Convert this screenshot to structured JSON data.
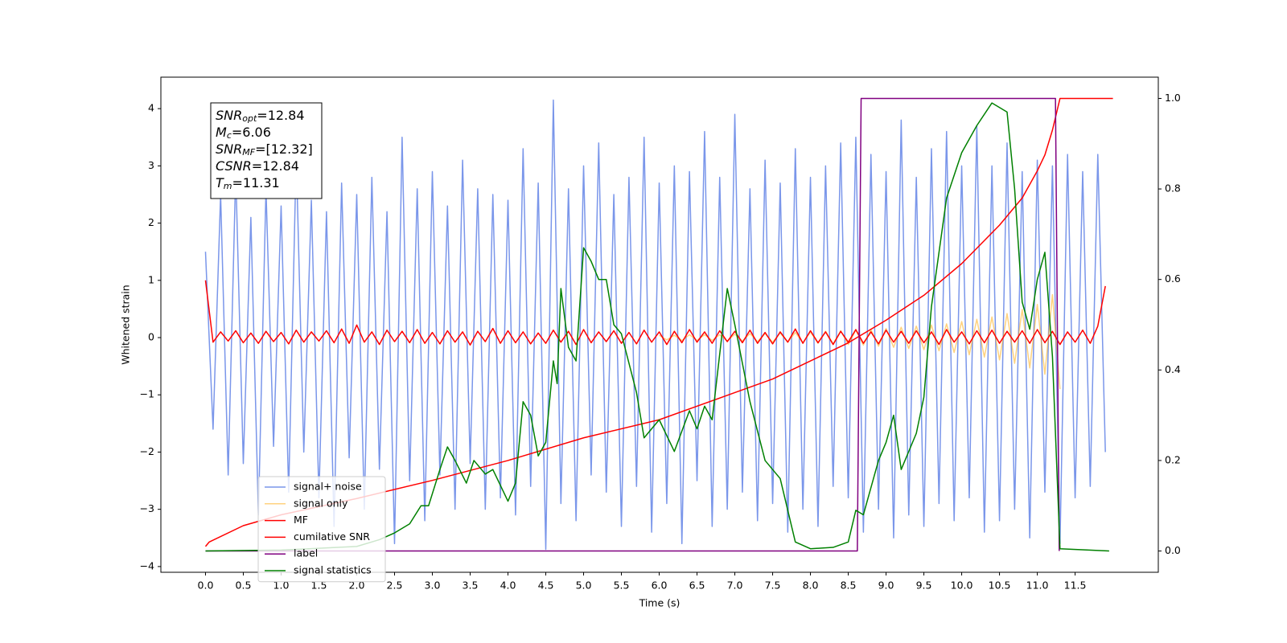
{
  "chart_data": {
    "type": "line",
    "xlabel": "Time (s)",
    "ylabel": "Whitened strain",
    "xlim": [
      -0.59,
      12.6
    ],
    "ylim": [
      -4.1,
      4.55
    ],
    "y2lim": [
      -0.047,
      1.047
    ],
    "xticks": [
      {
        "value": 0,
        "label": "0.0"
      },
      {
        "value": 0.5,
        "label": "0.5"
      },
      {
        "value": 1,
        "label": "1.0"
      },
      {
        "value": 1.5,
        "label": "1.5"
      },
      {
        "value": 2,
        "label": "2.0"
      },
      {
        "value": 2.5,
        "label": "2.5"
      },
      {
        "value": 3,
        "label": "3.0"
      },
      {
        "value": 3.5,
        "label": "3.5"
      },
      {
        "value": 4,
        "label": "4.0"
      },
      {
        "value": 4.5,
        "label": "4.5"
      },
      {
        "value": 5,
        "label": "5.0"
      },
      {
        "value": 5.5,
        "label": "5.5"
      },
      {
        "value": 6,
        "label": "6.0"
      },
      {
        "value": 6.5,
        "label": "6.5"
      },
      {
        "value": 7,
        "label": "7.0"
      },
      {
        "value": 7.5,
        "label": "7.5"
      },
      {
        "value": 8,
        "label": "8.0"
      },
      {
        "value": 8.5,
        "label": "8.5"
      },
      {
        "value": 9,
        "label": "9.0"
      },
      {
        "value": 9.5,
        "label": "9.5"
      },
      {
        "value": 10,
        "label": "10.0"
      },
      {
        "value": 10.5,
        "label": "10.5"
      },
      {
        "value": 11,
        "label": "11.0"
      },
      {
        "value": 11.5,
        "label": "11.5"
      }
    ],
    "yticks": [
      {
        "value": -4,
        "label": "−4"
      },
      {
        "value": -3,
        "label": "−3"
      },
      {
        "value": -2,
        "label": "−2"
      },
      {
        "value": -1,
        "label": "−1"
      },
      0,
      1,
      2,
      3,
      4
    ],
    "y2ticks": [
      {
        "value": 0,
        "label": "0.0"
      },
      {
        "value": 0.2,
        "label": "0.2"
      },
      {
        "value": 0.4,
        "label": "0.4"
      },
      {
        "value": 0.6,
        "label": "0.6"
      },
      {
        "value": 0.8,
        "label": "0.8"
      },
      {
        "value": 1,
        "label": "1.0"
      }
    ],
    "annotations": [
      {
        "symbol": "SNR",
        "sub": "opt",
        "text": "=12.84"
      },
      {
        "symbol": "M",
        "sub": "c",
        "text": "=6.06"
      },
      {
        "symbol": "SNR",
        "sub": "MF",
        "text": "=[12.32]"
      },
      {
        "symbol": "CSNR",
        "text": "=12.84"
      },
      {
        "symbol": "T",
        "sub": "m",
        "text": "=11.31"
      }
    ],
    "x": [
      0,
      0.1,
      0.2,
      0.3,
      0.4,
      0.5,
      0.6,
      0.7,
      0.8,
      0.9,
      1,
      1.1,
      1.2,
      1.3,
      1.4,
      1.5,
      1.6,
      1.7,
      1.8,
      1.9,
      2,
      2.1,
      2.2,
      2.3,
      2.4,
      2.5,
      2.6,
      2.7,
      2.8,
      2.9,
      3,
      3.1,
      3.2,
      3.3,
      3.4,
      3.5,
      3.6,
      3.7,
      3.8,
      3.9,
      4,
      4.1,
      4.2,
      4.3,
      4.4,
      4.5,
      4.6,
      4.7,
      4.8,
      4.9,
      5,
      5.1,
      5.2,
      5.3,
      5.4,
      5.5,
      5.6,
      5.7,
      5.8,
      5.9,
      6,
      6.1,
      6.2,
      6.3,
      6.4,
      6.5,
      6.6,
      6.7,
      6.8,
      6.9,
      7,
      7.1,
      7.2,
      7.3,
      7.4,
      7.5,
      7.6,
      7.7,
      7.8,
      7.9,
      8,
      8.1,
      8.2,
      8.3,
      8.4,
      8.5,
      8.6,
      8.7,
      8.8,
      8.9,
      9,
      9.1,
      9.2,
      9.3,
      9.4,
      9.5,
      9.6,
      9.7,
      9.8,
      9.9,
      10,
      10.1,
      10.2,
      10.3,
      10.4,
      10.5,
      10.6,
      10.7,
      10.8,
      10.9,
      11,
      11.1,
      11.2,
      11.3,
      11.4,
      11.5,
      11.6,
      11.7,
      11.8,
      11.9
    ],
    "series": [
      {
        "name": "signal+ noise",
        "color": "#4169e1",
        "alpha": 0.7,
        "values": [
          1.5,
          -1.6,
          2.5,
          -2.4,
          2.9,
          -2.2,
          2.1,
          -3.1,
          2.6,
          -1.9,
          2.3,
          -2.7,
          3.2,
          -2.0,
          2.4,
          -2.8,
          2.2,
          -3.3,
          2.7,
          -2.1,
          2.5,
          -3.0,
          2.8,
          -2.3,
          2.2,
          -3.6,
          3.5,
          -2.5,
          2.6,
          -3.2,
          2.9,
          -2.4,
          2.3,
          -3.0,
          3.1,
          -2.2,
          2.6,
          -3.0,
          2.5,
          -2.8,
          2.4,
          -3.1,
          3.3,
          -2.6,
          2.7,
          -3.7,
          4.15,
          -2.9,
          2.6,
          -3.2,
          3.0,
          -2.4,
          3.4,
          -2.7,
          2.5,
          -3.3,
          2.8,
          -2.6,
          3.5,
          -3.4,
          2.7,
          -2.9,
          3.0,
          -3.6,
          2.9,
          -2.5,
          3.6,
          -3.3,
          2.8,
          -3.0,
          3.9,
          -2.7,
          2.6,
          -3.2,
          3.1,
          -2.9,
          2.7,
          -3.4,
          3.3,
          -3.0,
          2.8,
          -3.3,
          3.0,
          -2.6,
          3.4,
          -2.8,
          3.5,
          -3.4,
          3.2,
          -3.0,
          2.9,
          -3.5,
          3.8,
          -3.1,
          2.8,
          -3.3,
          3.3,
          -2.9,
          3.6,
          -3.2,
          3.0,
          -2.8,
          3.7,
          -3.4,
          3.0,
          -3.2,
          3.4,
          -3.0,
          2.9,
          -3.5,
          3.1,
          -2.7,
          3.0,
          -3.6,
          3.2,
          -2.8,
          2.9,
          -2.6,
          3.2,
          -2.0
        ]
      },
      {
        "name": "signal only",
        "color": "#ffa500",
        "alpha": 0.5,
        "x": [
          6,
          6.1,
          6.2,
          6.3,
          6.4,
          6.5,
          6.6,
          6.7,
          6.8,
          6.9,
          7,
          7.1,
          7.2,
          7.3,
          7.4,
          7.5,
          7.6,
          7.7,
          7.8,
          7.9,
          8,
          8.1,
          8.2,
          8.3,
          8.4,
          8.5,
          8.6,
          8.7,
          8.8,
          8.9,
          9,
          9.1,
          9.2,
          9.3,
          9.4,
          9.5,
          9.6,
          9.7,
          9.8,
          9.9,
          10,
          10.1,
          10.2,
          10.3,
          10.4,
          10.5,
          10.6,
          10.7,
          10.8,
          10.9,
          11,
          11.1,
          11.2,
          11.3
        ],
        "values": [
          0.04,
          -0.04,
          0.04,
          -0.05,
          0.05,
          -0.05,
          0.05,
          -0.05,
          0.05,
          -0.06,
          0.06,
          -0.06,
          0.07,
          -0.07,
          0.07,
          -0.08,
          0.08,
          -0.08,
          0.09,
          -0.09,
          0.1,
          -0.1,
          0.11,
          -0.11,
          0.12,
          -0.12,
          0.13,
          -0.13,
          0.14,
          -0.15,
          0.16,
          -0.17,
          0.18,
          -0.19,
          0.2,
          -0.21,
          0.22,
          -0.23,
          0.24,
          -0.26,
          0.28,
          -0.3,
          0.32,
          -0.34,
          0.36,
          -0.39,
          0.42,
          -0.45,
          0.49,
          -0.53,
          0.58,
          -0.64,
          0.75,
          -0.9
        ]
      },
      {
        "name": "MF",
        "color": "#ff0000",
        "alpha": 1,
        "values": [
          1.0,
          -0.08,
          0.1,
          -0.06,
          0.12,
          -0.09,
          0.08,
          -0.1,
          0.11,
          -0.07,
          0.09,
          -0.11,
          0.13,
          -0.08,
          0.1,
          -0.06,
          0.12,
          -0.09,
          0.15,
          -0.1,
          0.22,
          -0.08,
          0.1,
          -0.12,
          0.13,
          -0.07,
          0.11,
          -0.09,
          0.14,
          -0.1,
          0.09,
          -0.11,
          0.12,
          -0.08,
          0.1,
          -0.13,
          0.11,
          -0.07,
          0.16,
          -0.1,
          0.12,
          -0.09,
          0.1,
          -0.11,
          0.08,
          -0.1,
          0.13,
          -0.08,
          0.11,
          -0.12,
          0.14,
          -0.09,
          0.1,
          -0.07,
          0.12,
          -0.1,
          0.09,
          -0.11,
          0.13,
          -0.08,
          0.1,
          -0.12,
          0.11,
          -0.09,
          0.14,
          -0.08,
          0.1,
          -0.1,
          0.12,
          -0.07,
          0.11,
          -0.09,
          0.13,
          -0.1,
          0.09,
          -0.11,
          0.1,
          -0.08,
          0.15,
          -0.1,
          0.12,
          -0.09,
          0.1,
          -0.12,
          0.11,
          -0.08,
          0.14,
          -0.1,
          0.1,
          -0.11,
          0.13,
          -0.08,
          0.11,
          -0.1,
          0.12,
          -0.09,
          0.1,
          -0.12,
          0.14,
          -0.08,
          0.1,
          -0.11,
          0.12,
          -0.09,
          0.13,
          -0.1,
          0.11,
          -0.08,
          0.12,
          -0.1,
          0.14,
          -0.09,
          0.11,
          -0.12,
          0.1,
          -0.08,
          0.13,
          -0.1,
          0.2,
          0.9
        ]
      },
      {
        "name": "cumilative SNR",
        "color": "#ff0000",
        "alpha": 1,
        "axis": "y2",
        "x": [
          0,
          0.05,
          0.5,
          1,
          2,
          3,
          4,
          5,
          6,
          7,
          7.5,
          8,
          8.5,
          9,
          9.5,
          10,
          10.5,
          10.8,
          11,
          11.1,
          11.2,
          11.3,
          12
        ],
        "values": [
          0.01,
          0.02,
          0.056,
          0.08,
          0.116,
          0.156,
          0.2,
          0.25,
          0.29,
          0.35,
          0.38,
          0.42,
          0.46,
          0.51,
          0.565,
          0.635,
          0.72,
          0.78,
          0.84,
          0.875,
          0.93,
          1.0,
          1.0
        ]
      },
      {
        "name": "label",
        "color": "#800080",
        "alpha": 1,
        "axis": "y2",
        "x": [
          0,
          8.62,
          8.67,
          11.24,
          11.29
        ],
        "values": [
          0,
          0,
          1,
          1,
          0
        ]
      },
      {
        "name": "signal statistics",
        "color": "#008000",
        "alpha": 1,
        "axis": "y2",
        "x": [
          0,
          1,
          2,
          2.3,
          2.5,
          2.7,
          2.85,
          2.95,
          3.1,
          3.2,
          3.3,
          3.45,
          3.55,
          3.7,
          3.8,
          4,
          4.1,
          4.2,
          4.3,
          4.4,
          4.5,
          4.6,
          4.65,
          4.7,
          4.8,
          4.9,
          5,
          5.1,
          5.2,
          5.3,
          5.4,
          5.5,
          5.7,
          5.8,
          6,
          6.2,
          6.4,
          6.5,
          6.6,
          6.7,
          6.9,
          7,
          7.2,
          7.4,
          7.6,
          7.8,
          8,
          8.3,
          8.5,
          8.6,
          8.7,
          8.9,
          9,
          9.1,
          9.2,
          9.4,
          9.5,
          9.6,
          9.8,
          10,
          10.2,
          10.4,
          10.6,
          10.7,
          10.8,
          10.9,
          11,
          11.1,
          11.2,
          11.3,
          11.95
        ],
        "values": [
          0,
          0.002,
          0.01,
          0.025,
          0.04,
          0.06,
          0.1,
          0.1,
          0.18,
          0.23,
          0.2,
          0.15,
          0.2,
          0.17,
          0.18,
          0.11,
          0.15,
          0.33,
          0.3,
          0.21,
          0.24,
          0.42,
          0.37,
          0.58,
          0.45,
          0.42,
          0.67,
          0.64,
          0.6,
          0.6,
          0.5,
          0.48,
          0.35,
          0.25,
          0.29,
          0.22,
          0.31,
          0.27,
          0.32,
          0.29,
          0.58,
          0.5,
          0.33,
          0.2,
          0.16,
          0.02,
          0.005,
          0.008,
          0.02,
          0.09,
          0.08,
          0.2,
          0.24,
          0.3,
          0.18,
          0.26,
          0.34,
          0.54,
          0.78,
          0.88,
          0.94,
          0.99,
          0.97,
          0.8,
          0.55,
          0.49,
          0.6,
          0.66,
          0.43,
          0.005,
          0
        ]
      }
    ]
  }
}
